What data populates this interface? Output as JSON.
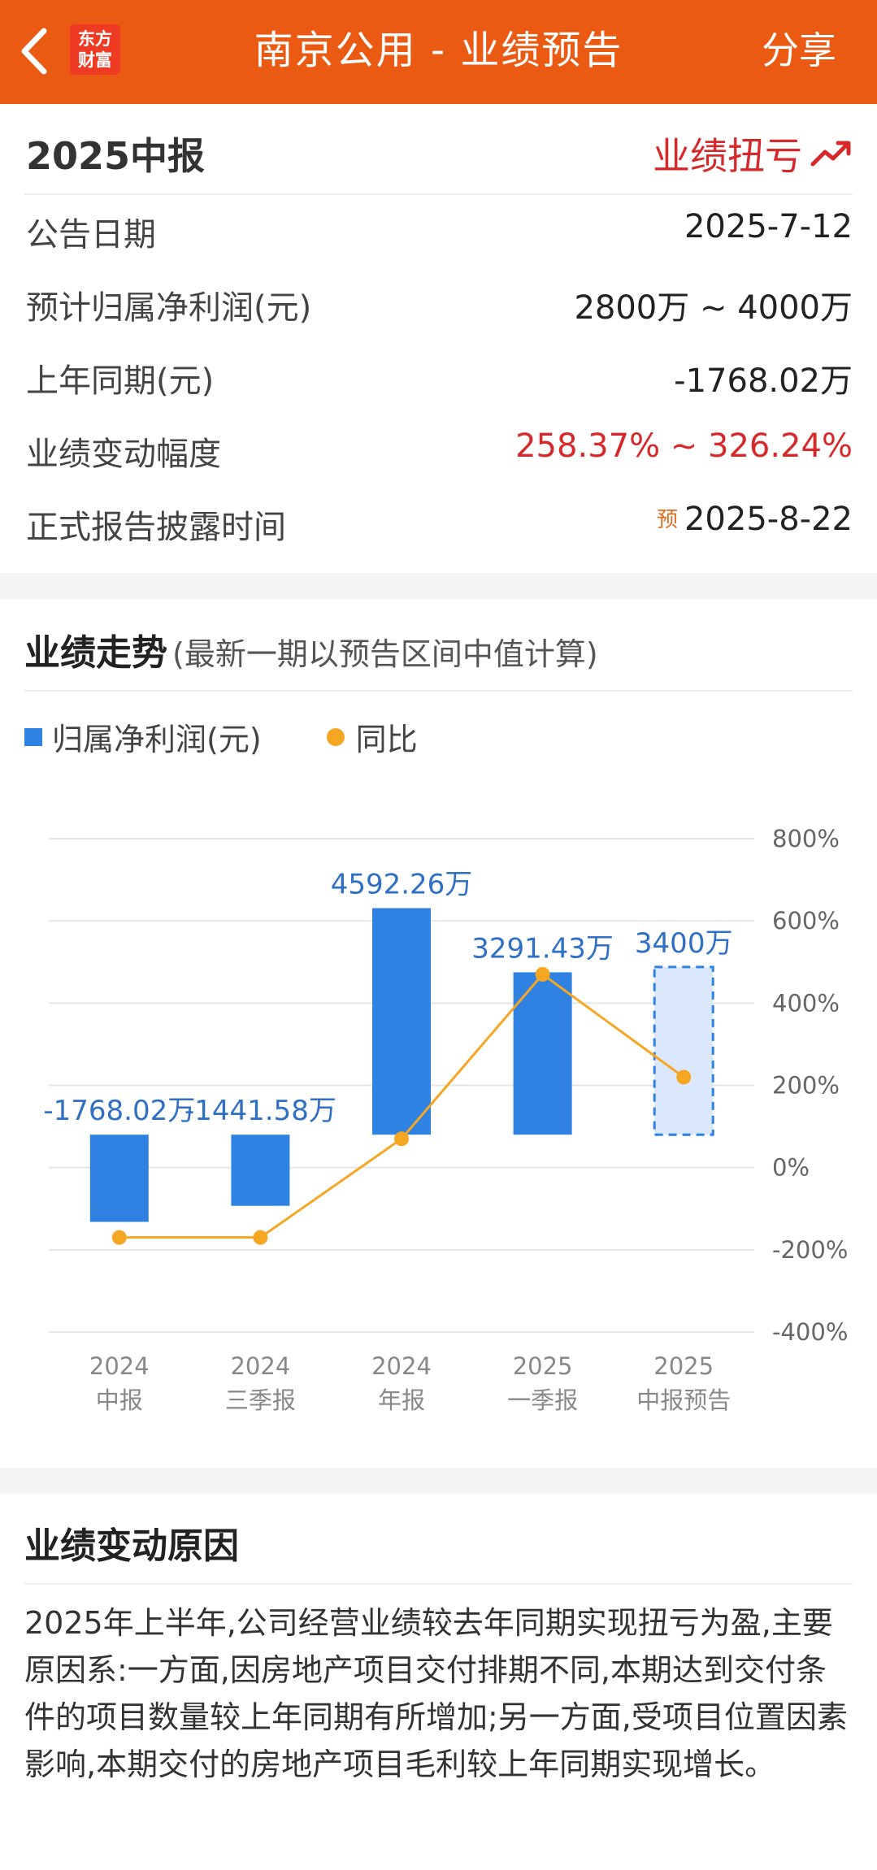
{
  "header": {
    "title": "南京公用 - 业绩预告",
    "share_label": "分享",
    "logo_line1": "东方",
    "logo_line2": "财富"
  },
  "summary": {
    "period": "2025中报",
    "flag": "业绩扭亏",
    "rows": [
      {
        "label": "公告日期",
        "value": "2025-7-12"
      },
      {
        "label": "预计归属净利润(元)",
        "value": "2800万 ~ 4000万"
      },
      {
        "label": "上年同期(元)",
        "value": "-1768.02万"
      },
      {
        "label": "业绩变动幅度",
        "value": "258.37% ~ 326.24%"
      },
      {
        "label": "正式报告披露时间",
        "value": "2025-8-22",
        "tag": "预"
      }
    ]
  },
  "trend": {
    "title": "业绩走势",
    "subtitle": "(最新一期以预告区间中值计算)",
    "legend_bar": "归属净利润(元)",
    "legend_line": "同比"
  },
  "chart_data": {
    "type": "bar",
    "categories": [
      [
        "2024",
        "中报"
      ],
      [
        "2024",
        "三季报"
      ],
      [
        "2024",
        "年报"
      ],
      [
        "2025",
        "一季报"
      ],
      [
        "2025",
        "中报预告"
      ]
    ],
    "series": [
      {
        "name": "归属净利润(元)",
        "type": "bar",
        "values": [
          -1768.02,
          -1441.58,
          4592.26,
          3291.43,
          3400
        ],
        "labels": [
          "-1768.02万",
          "-1441.58万",
          "4592.26万",
          "3291.43万",
          "3400万"
        ],
        "forecast_last": true
      },
      {
        "name": "同比",
        "type": "line",
        "values": [
          -170,
          -170,
          70,
          470,
          220
        ],
        "axis": "right"
      }
    ],
    "y_left_range": [
      -4000,
      6000
    ],
    "y_right_ticks": [
      "800%",
      "600%",
      "400%",
      "200%",
      "0%",
      "-200%",
      "-400%"
    ],
    "y_right_range": [
      -400,
      800
    ],
    "colors": {
      "bar": "#2f82e2",
      "forecast_fill": "#dbe8fb",
      "line": "#f5a623",
      "label": "#2f6fc4"
    }
  },
  "reason": {
    "title": "业绩变动原因",
    "text": "2025年上半年,公司经营业绩较去年同期实现扭亏为盈,主要原因系:一方面,因房地产项目交付排期不同,本期达到交付条件的项目数量较上年同期有所增加;另一方面,受项目位置因素影响,本期交付的房地产项目毛利较上年同期实现增长。"
  }
}
